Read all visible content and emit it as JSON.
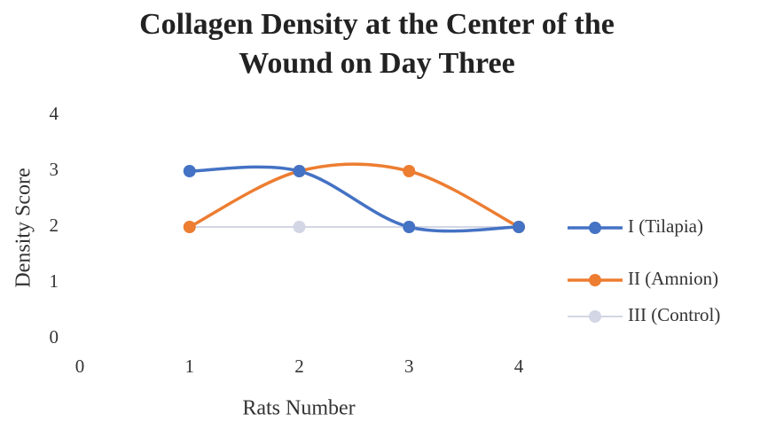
{
  "chart_data": {
    "type": "line",
    "title": "Collagen Density at the Center of the Wound on Day Three",
    "x_label": "Rats Number",
    "y_label": "Density Score",
    "x": [
      1,
      2,
      3,
      4
    ],
    "series": [
      {
        "name": "I (Tilapia)",
        "color": "#4472c4",
        "values": [
          3,
          3,
          2,
          2
        ]
      },
      {
        "name": "II (Amnion)",
        "color": "#ed7d31",
        "values": [
          2,
          3,
          3,
          2
        ]
      },
      {
        "name": "III (Control)",
        "color": "#d3d6e4",
        "values": [
          2,
          2,
          2,
          2
        ]
      }
    ],
    "xlim": [
      0,
      4
    ],
    "xticks": [
      0,
      1,
      2,
      3,
      4
    ],
    "ylim": [
      0,
      4
    ],
    "yticks": [
      0,
      1,
      2,
      3,
      4
    ],
    "smooth": true,
    "grid": false,
    "legend": "right"
  }
}
